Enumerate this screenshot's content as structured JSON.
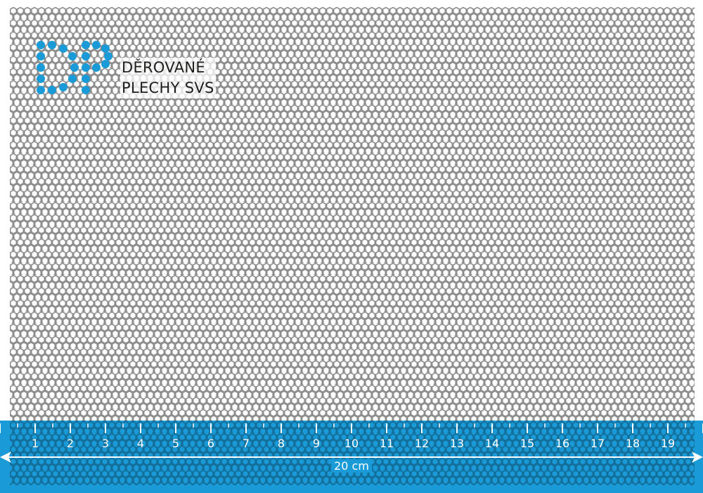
{
  "brand": {
    "line1": "DĚROVANÉ",
    "line2": "PLECHY SVS",
    "logo_letters": "DP"
  },
  "colors": {
    "accent": "#1a9ad6",
    "sheet": "#8a8a8a",
    "text": "#1d1d1b"
  },
  "ruler": {
    "labels": [
      "1",
      "2",
      "3",
      "4",
      "5",
      "6",
      "7",
      "8",
      "9",
      "10",
      "11",
      "12",
      "13",
      "14",
      "15",
      "16",
      "17",
      "18",
      "19"
    ],
    "total_label": "20 cm"
  }
}
